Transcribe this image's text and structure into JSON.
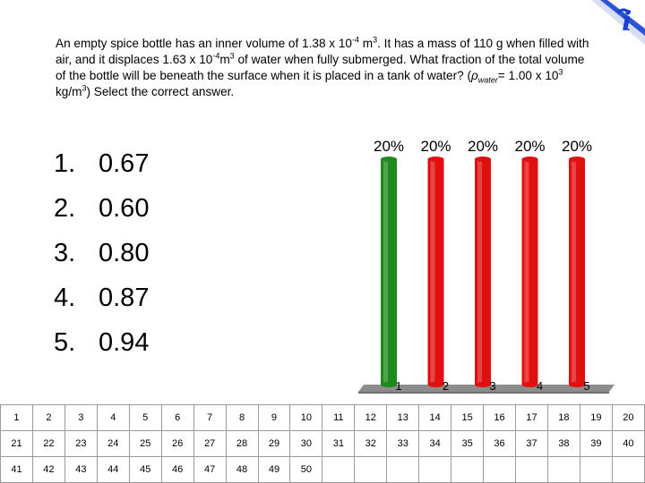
{
  "question": {
    "p1": "An empty spice bottle has an inner volume of 1.38 x 10",
    "exp1": "-4",
    "p2": " m",
    "exp2": "3",
    "p3": ". It has a mass of 110 g when filled with air, and it displaces 1.63 x 10",
    "exp3": "-4",
    "p4": "m",
    "exp4": "3",
    "p5": " of water when fully submerged. What fraction of the total volume of the bottle will be beneath the surface when it is placed in a tank of water?  (",
    "rho": "ρ",
    "rho_sub": "water",
    "p6": "= 1.00 x 10",
    "exp5": "3",
    "p7": " kg/m",
    "exp6": "3",
    "p8": ") Select the correct answer."
  },
  "answers": [
    {
      "num": "1.",
      "text": "0.67"
    },
    {
      "num": "2.",
      "text": "0.60"
    },
    {
      "num": "3.",
      "text": "0.80"
    },
    {
      "num": "4.",
      "text": "0.87"
    },
    {
      "num": "5.",
      "text": "0.94"
    }
  ],
  "chart_data": {
    "type": "bar",
    "categories": [
      "1",
      "2",
      "3",
      "4",
      "5"
    ],
    "values": [
      20,
      20,
      20,
      20,
      20
    ],
    "value_labels": [
      "20%",
      "20%",
      "20%",
      "20%",
      "20%"
    ],
    "ylim": [
      0,
      20
    ],
    "bar_colors": [
      "#1e8a1e",
      "#e01010",
      "#e01010",
      "#e01010",
      "#e01010"
    ]
  },
  "response_grid": [
    [
      "1",
      "2",
      "3",
      "4",
      "5",
      "6",
      "7",
      "8",
      "9",
      "10",
      "11",
      "12",
      "13",
      "14",
      "15",
      "16",
      "17",
      "18",
      "19",
      "20"
    ],
    [
      "21",
      "22",
      "23",
      "24",
      "25",
      "26",
      "27",
      "28",
      "29",
      "30",
      "31",
      "32",
      "33",
      "34",
      "35",
      "36",
      "37",
      "38",
      "39",
      "40"
    ],
    [
      "41",
      "42",
      "43",
      "44",
      "45",
      "46",
      "47",
      "48",
      "49",
      "50",
      "",
      "",
      "",
      "",
      "",
      "",
      "",
      "",
      "",
      ""
    ]
  ],
  "corner_logo_icon": "turning-point-logo-icon",
  "colors": {
    "correct": "#1e8a1e",
    "incorrect": "#e01010",
    "logo": "#1a3fd0"
  }
}
